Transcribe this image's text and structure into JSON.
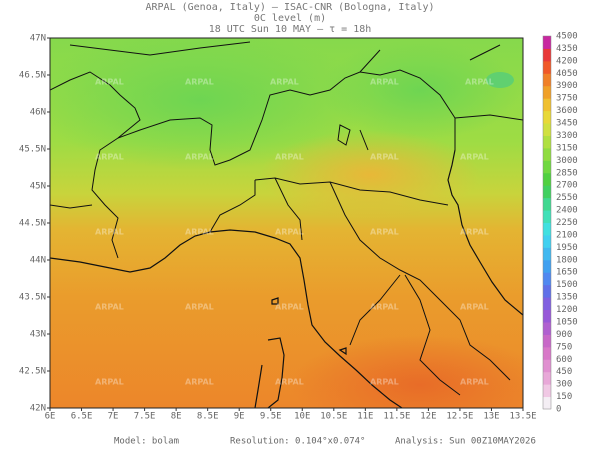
{
  "header": {
    "line1": "ARPAL (Genoa, Italy)  –  ISAC-CNR (Bologna, Italy)",
    "line2": "0C level (m)",
    "line3": "18 UTC Sun 10 MAY  –  τ = 18h"
  },
  "map": {
    "watermark": "ARPAL",
    "lon_labels": [
      "6E",
      "6.5E",
      "7E",
      "7.5E",
      "8E",
      "8.5E",
      "9E",
      "9.5E",
      "10E",
      "10.5E",
      "11E",
      "11.5E",
      "12E",
      "12.5E",
      "13E",
      "13.5E"
    ],
    "lat_labels": [
      "47N",
      "46.5N",
      "46N",
      "45.5N",
      "45N",
      "44.5N",
      "44N",
      "43.5N",
      "43N",
      "42.5N",
      "42N"
    ]
  },
  "colorbar": {
    "levels": [
      0,
      150,
      300,
      450,
      600,
      750,
      900,
      1050,
      1200,
      1350,
      1500,
      1650,
      1800,
      1950,
      2100,
      2250,
      2400,
      2550,
      2700,
      2850,
      3000,
      3150,
      3300,
      3450,
      3600,
      3750,
      3900,
      4050,
      4200,
      4350,
      4500
    ],
    "colors": [
      "#f4eef4",
      "#f0c8e4",
      "#e8a8d8",
      "#e090d0",
      "#d878c8",
      "#c868c8",
      "#b060d0",
      "#9858d8",
      "#8060e0",
      "#6070e8",
      "#5088f0",
      "#40a0f0",
      "#40b8f0",
      "#40d0f0",
      "#40e0e0",
      "#40e0b8",
      "#40d890",
      "#40d060",
      "#50d040",
      "#70d840",
      "#90dc40",
      "#b0e040",
      "#d0e040",
      "#e8d838",
      "#f0c030",
      "#f0a028",
      "#f08028",
      "#f05828",
      "#e83838",
      "#c828a0"
    ]
  },
  "footer": {
    "model": "Model: bolam",
    "resolution": "Resolution: 0.104°x0.074°",
    "analysis": "Analysis: Sun 00Z10MAY2026"
  }
}
